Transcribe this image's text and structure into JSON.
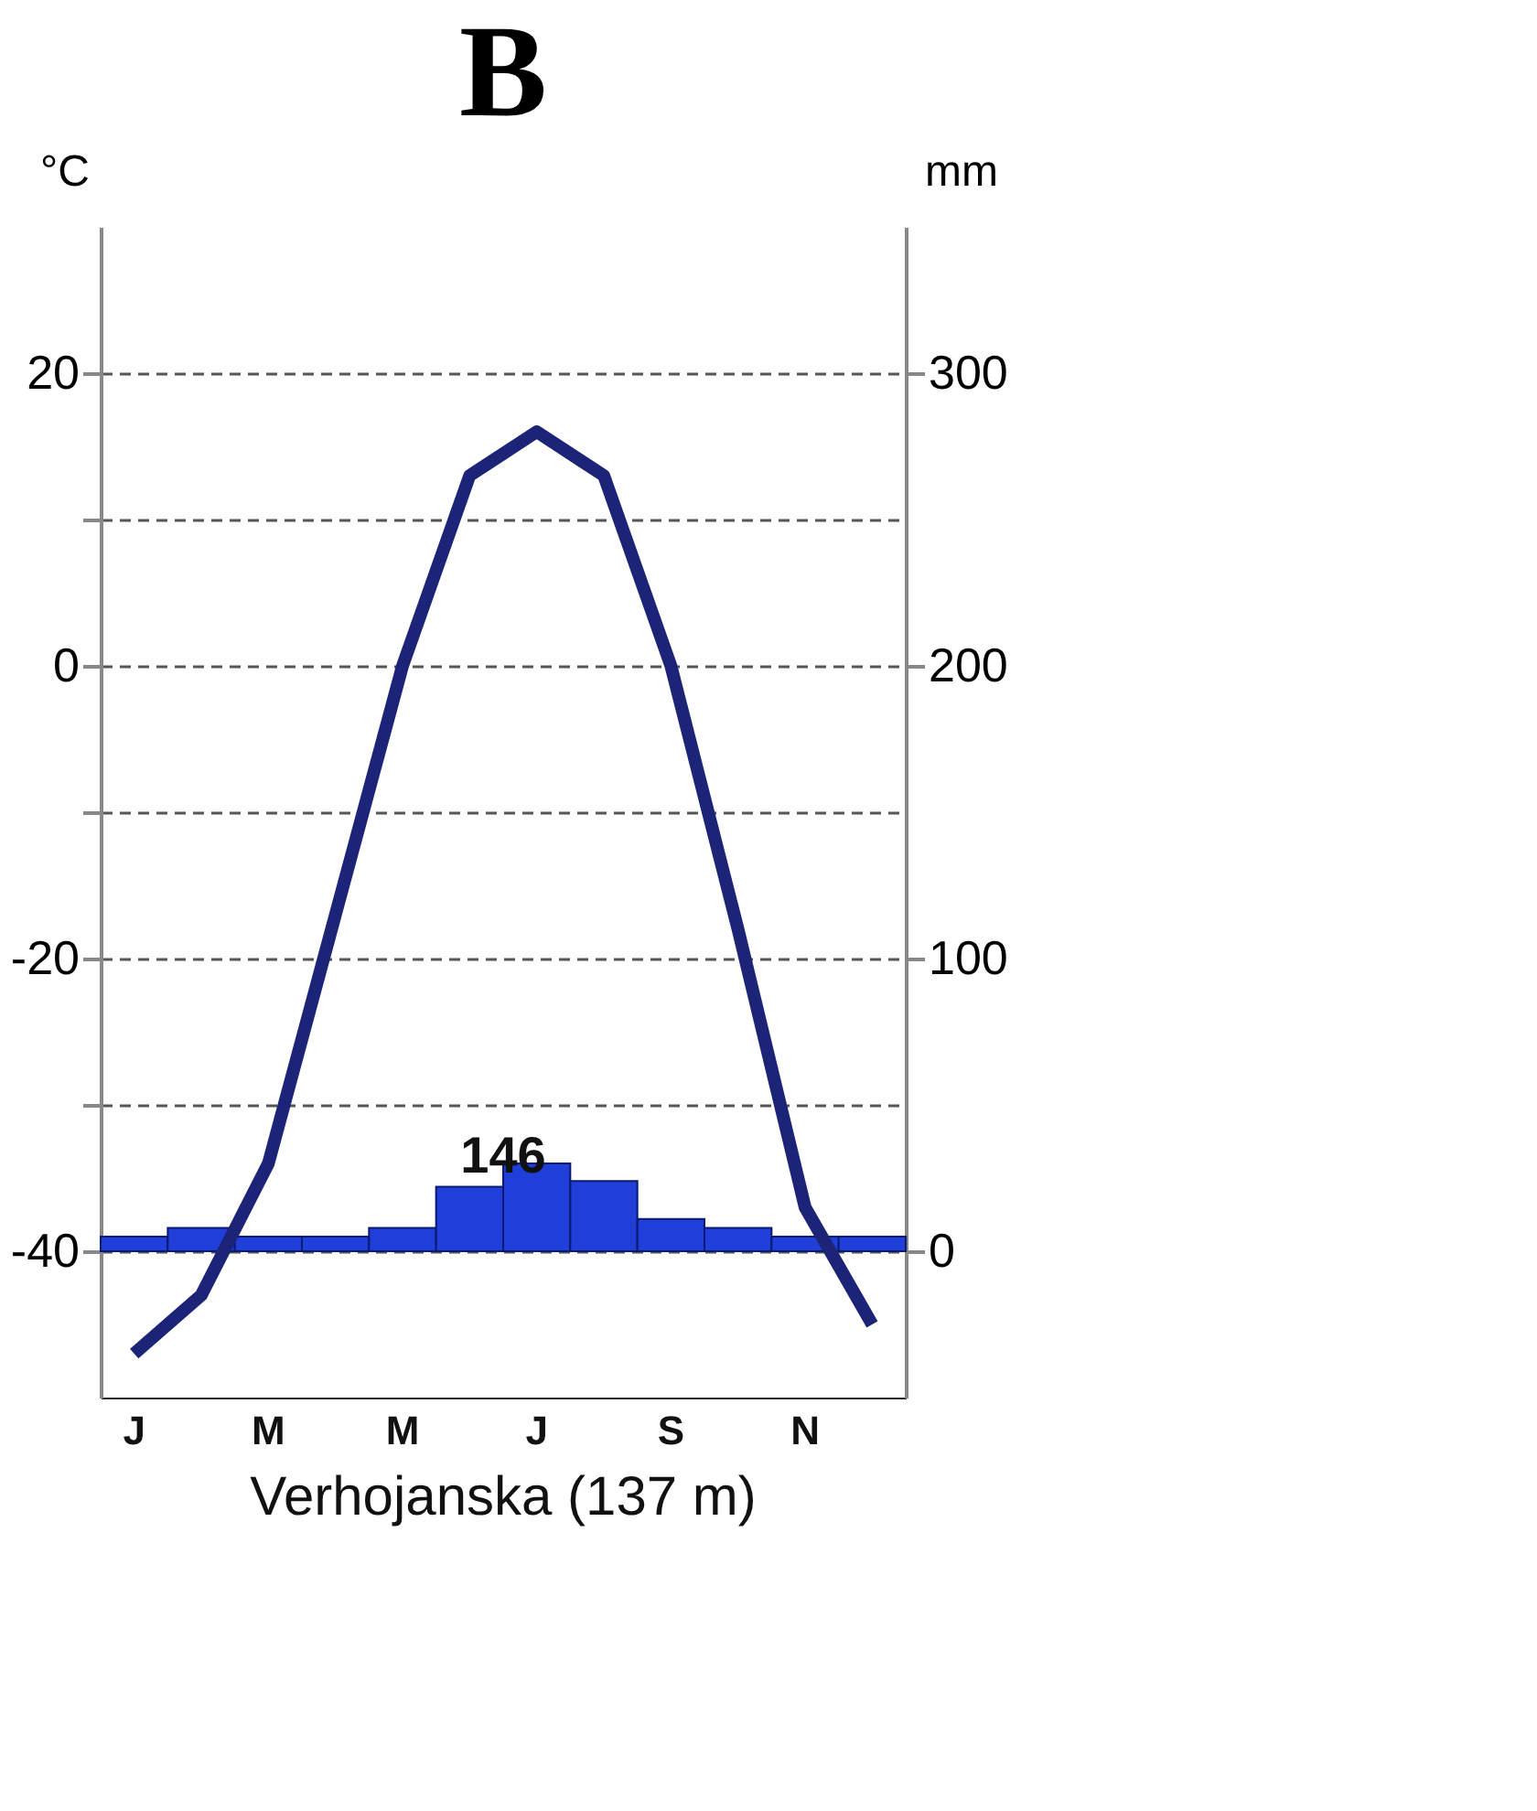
{
  "chart_data": {
    "type": "bar",
    "title": "B",
    "categories": [
      "J",
      null,
      "M",
      null,
      "M",
      null,
      "J",
      null,
      "S",
      null,
      "N",
      null
    ],
    "series": [
      {
        "axis": "y2",
        "color": "#1f3fd8",
        "values": [
          5,
          8,
          5,
          5,
          8,
          22,
          30,
          24,
          11,
          8,
          5,
          5
        ]
      },
      {
        "type": "line",
        "color": "#1c2478",
        "values": [
          -47,
          -43,
          -34,
          -17,
          0,
          13,
          16,
          13,
          0,
          -18,
          -37,
          -45
        ]
      }
    ],
    "ylabel": "°C",
    "y2label": "mm",
    "ylim": [
      -50,
      30
    ],
    "yticks": [
      -40,
      {
        "value": -30,
        "label": null
      },
      -20,
      {
        "value": -10,
        "label": null
      },
      0,
      {
        "value": 10,
        "label": null
      },
      20
    ],
    "y2lim": [
      -50,
      350
    ],
    "y2ticks": [
      0,
      100,
      200,
      300
    ],
    "grid": "y",
    "annotations": [
      "146",
      "Verhojanska (137 m)"
    ]
  }
}
